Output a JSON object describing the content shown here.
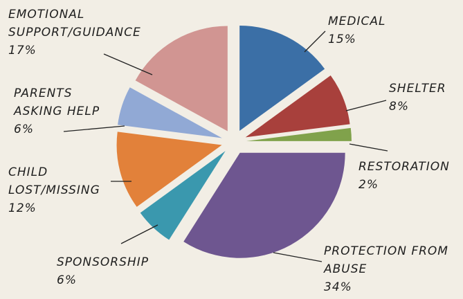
{
  "chart_data": {
    "type": "pie",
    "categories": [
      "MEDICAL",
      "SHELTER",
      "RESTORATION",
      "PROTECTION FROM ABUSE",
      "SPONSORSHIP",
      "CHILD LOST/MISSING",
      "PARENTS ASKING HELP",
      "EMOTIONAL SUPPORT/GUIDANCE"
    ],
    "values": [
      15,
      8,
      2,
      34,
      6,
      12,
      6,
      17
    ],
    "value_labels": [
      "15%",
      "8%",
      "2%",
      "34%",
      "6%",
      "12%",
      "6%",
      "17%"
    ],
    "colors": [
      "#3b6fa6",
      "#a8403c",
      "#80a24b",
      "#6e5690",
      "#3a98ae",
      "#e2813a",
      "#91a9d5",
      "#d19592"
    ]
  }
}
